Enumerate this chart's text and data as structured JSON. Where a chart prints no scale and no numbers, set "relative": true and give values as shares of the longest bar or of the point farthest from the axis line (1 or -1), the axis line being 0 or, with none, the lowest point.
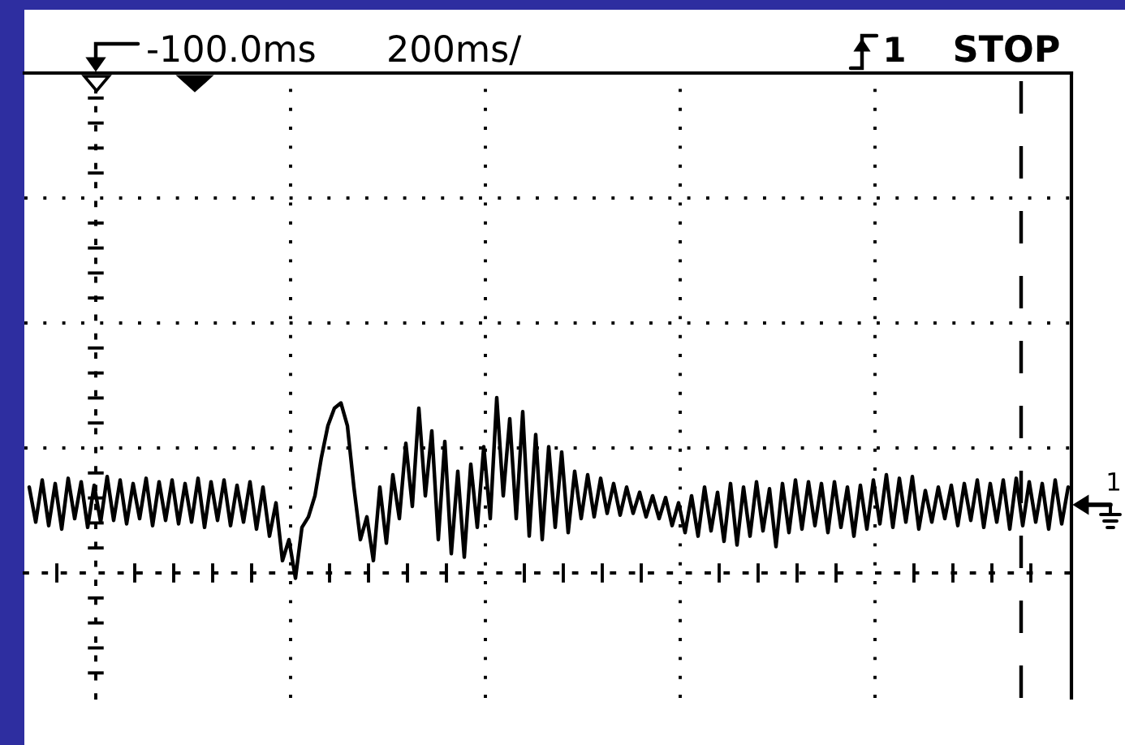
{
  "chart_data": {
    "type": "line",
    "relative": true,
    "categories": [
      null,
      null,
      null,
      null,
      null,
      null,
      null,
      null,
      null,
      null,
      null,
      null,
      null,
      null,
      null,
      null,
      null,
      null,
      null,
      null,
      null,
      null,
      null,
      null,
      null,
      null,
      null,
      null,
      null,
      null,
      null,
      null,
      null,
      null,
      null,
      null,
      null,
      null,
      null,
      null,
      null,
      null,
      null,
      null,
      null,
      null,
      null,
      null,
      null,
      null,
      null,
      null,
      null,
      null,
      null,
      null,
      null,
      null,
      null,
      null,
      null,
      null,
      null,
      null,
      null,
      null,
      null,
      null,
      null,
      null,
      null,
      null,
      null,
      null,
      null,
      null,
      null,
      null,
      null,
      null,
      null,
      null,
      null,
      null,
      null,
      null,
      null,
      null,
      null,
      null,
      null,
      null,
      null,
      null,
      null,
      null,
      null,
      null,
      null,
      null,
      null,
      null,
      null,
      null,
      null,
      null,
      null,
      null,
      null,
      null,
      null,
      null,
      null,
      null,
      null,
      null,
      null,
      null,
      null,
      null,
      null,
      null,
      null,
      null,
      null,
      null,
      null,
      null,
      null,
      null,
      null,
      null,
      null,
      null,
      null,
      null,
      null,
      null,
      null,
      null,
      null,
      null,
      null,
      null,
      null,
      null,
      null,
      null,
      null,
      null,
      null,
      null,
      null,
      null,
      null,
      null,
      null,
      null,
      null,
      null,
      null
    ],
    "series": [
      {
        "name": "1",
        "color": "#000000",
        "values": [
          0.49,
          0.29,
          0.53,
          0.27,
          0.51,
          0.25,
          0.54,
          0.31,
          0.52,
          0.26,
          0.5,
          0.29,
          0.55,
          0.3,
          0.53,
          0.28,
          0.51,
          0.31,
          0.54,
          0.27,
          0.52,
          0.3,
          0.53,
          0.28,
          0.51,
          0.29,
          0.54,
          0.26,
          0.52,
          0.3,
          0.53,
          0.27,
          0.5,
          0.29,
          0.52,
          0.25,
          0.49,
          0.21,
          0.4,
          0.07,
          0.19,
          -0.03,
          0.26,
          0.32,
          0.44,
          0.66,
          0.84,
          0.94,
          0.97,
          0.84,
          0.49,
          0.19,
          0.32,
          0.07,
          0.49,
          0.17,
          0.56,
          0.31,
          0.74,
          0.38,
          0.94,
          0.44,
          0.81,
          0.19,
          0.75,
          0.11,
          0.58,
          0.09,
          0.62,
          0.26,
          0.72,
          0.31,
          1,
          0.44,
          0.88,
          0.31,
          0.92,
          0.21,
          0.79,
          0.19,
          0.72,
          0.26,
          0.69,
          0.23,
          0.58,
          0.31,
          0.56,
          0.32,
          0.54,
          0.34,
          0.51,
          0.33,
          0.49,
          0.34,
          0.46,
          0.32,
          0.44,
          0.31,
          0.43,
          0.27,
          0.4,
          0.23,
          0.44,
          0.21,
          0.49,
          0.24,
          0.46,
          0.18,
          0.51,
          0.16,
          0.49,
          0.21,
          0.52,
          0.24,
          0.48,
          0.15,
          0.51,
          0.23,
          0.53,
          0.25,
          0.52,
          0.27,
          0.51,
          0.23,
          0.52,
          0.26,
          0.49,
          0.21,
          0.5,
          0.25,
          0.53,
          0.28,
          0.56,
          0.26,
          0.54,
          0.29,
          0.55,
          0.25,
          0.47,
          0.29,
          0.49,
          0.31,
          0.5,
          0.27,
          0.51,
          0.3,
          0.53,
          0.26,
          0.51,
          0.29,
          0.53,
          0.25,
          0.54,
          0.27,
          0.52,
          0.29,
          0.51,
          0.25,
          0.53,
          0.28,
          0.49
        ]
      }
    ],
    "grid": true,
    "tick_labels": false,
    "annotations": [
      "-100.0ms",
      "200ms/",
      "1",
      "STOP"
    ]
  }
}
